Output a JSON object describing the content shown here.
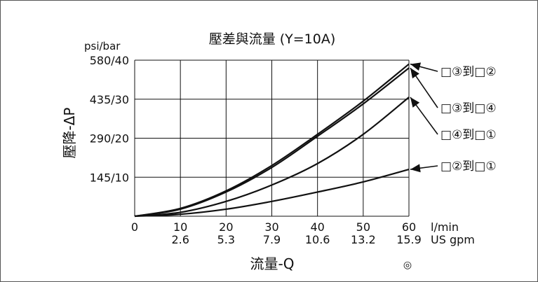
{
  "chart_data": {
    "type": "line",
    "title": "壓差與流量 (Y=10A)",
    "y_unit_label": "psi/bar",
    "ylabel": "壓降-ΔP",
    "xlabel": "流量-Q",
    "x_unit_primary": "l/min",
    "x_unit_secondary": "US gpm",
    "x_ticks_primary": [
      "0",
      "10",
      "20",
      "30",
      "40",
      "50",
      "60"
    ],
    "x_ticks_secondary": [
      "2.6",
      "5.3",
      "7.9",
      "10.6",
      "13.2",
      "15.9"
    ],
    "y_ticks": [
      "145/10",
      "290/20",
      "435/30",
      "580/40"
    ],
    "xlim": [
      0,
      60
    ],
    "ylim": [
      0,
      40
    ],
    "grid": true,
    "x": [
      0,
      10,
      20,
      30,
      40,
      50,
      60
    ],
    "series": [
      {
        "name": "□③到□②",
        "values": [
          0,
          2,
          6.5,
          13,
          21,
          29.5,
          39
        ]
      },
      {
        "name": "□③到□④",
        "values": [
          0,
          1.8,
          6.2,
          12.5,
          20.5,
          28.8,
          38
        ]
      },
      {
        "name": "□④到□①",
        "values": [
          0,
          1,
          3.8,
          8,
          13.5,
          21,
          30.5
        ]
      },
      {
        "name": "□②到□①",
        "values": [
          0,
          0.5,
          1.8,
          3.8,
          6.2,
          8.8,
          12
        ]
      }
    ],
    "line_color": "#111111"
  },
  "footnote_symbol": "◎"
}
